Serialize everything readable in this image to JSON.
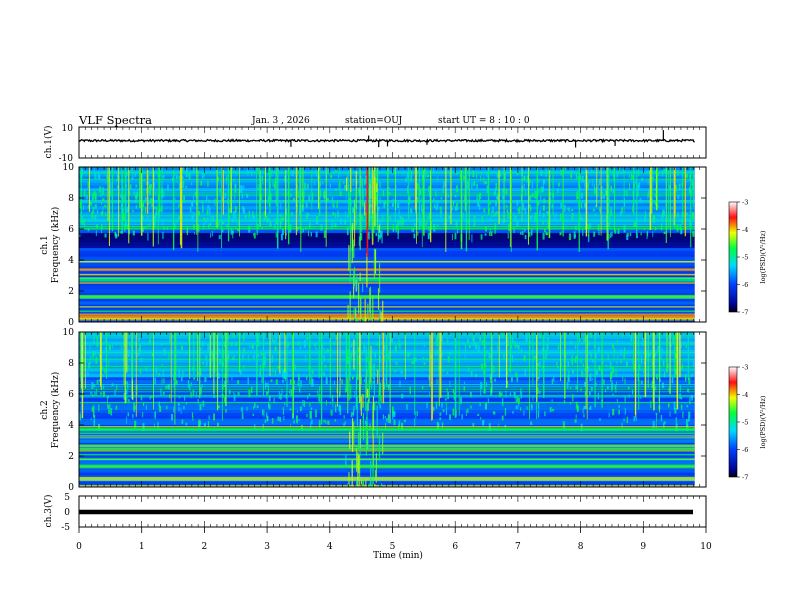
{
  "header": {
    "title": "VLF Spectra",
    "date": "Jan. 3 , 2026",
    "station": "station=OUJ",
    "start": "start UT = 8 : 10 : 0"
  },
  "chart_data": [
    {
      "type": "line",
      "id": "ch1-waveform",
      "ylabel": "ch.1(V)",
      "ylim": [
        -10,
        10
      ],
      "yticks": [
        "10",
        "-10"
      ],
      "xlim": [
        0,
        10
      ],
      "baseline": 1.2,
      "spikes": [
        {
          "t": 4.62,
          "v": 4.5
        },
        {
          "t": 4.78,
          "v": -3.0
        },
        {
          "t": 4.92,
          "v": -2.5
        },
        {
          "t": 3.38,
          "v": -2.8
        },
        {
          "t": 5.55,
          "v": -1.5
        },
        {
          "t": 7.92,
          "v": -3.2
        },
        {
          "t": 8.55,
          "v": -2.2
        },
        {
          "t": 9.32,
          "v": 8.0
        },
        {
          "t": 6.1,
          "v": 2.0
        }
      ]
    },
    {
      "type": "heatmap",
      "id": "ch1-spectrogram",
      "ylabel": "ch.1\nFrequency (kHz)",
      "ylim": [
        0,
        10
      ],
      "yticks": [
        "0",
        "2",
        "4",
        "6",
        "8",
        "10"
      ],
      "xlim": [
        0,
        10
      ],
      "colorbar": {
        "label": "log(PSD)(V²/Hz)",
        "range": [
          -7,
          -3
        ],
        "ticks": [
          "-3",
          "-4",
          "-5",
          "-6",
          "-7"
        ]
      }
    },
    {
      "type": "heatmap",
      "id": "ch2-spectrogram",
      "ylabel": "ch.2\nFrequency (kHz)",
      "ylim": [
        0,
        10
      ],
      "yticks": [
        "0",
        "2",
        "4",
        "6",
        "8",
        "10"
      ],
      "xlim": [
        0,
        10
      ],
      "colorbar": {
        "label": "log(PSD)(V²/Hz)",
        "range": [
          -7,
          -3
        ],
        "ticks": [
          "-3",
          "-4",
          "-5",
          "-6",
          "-7"
        ]
      }
    },
    {
      "type": "line",
      "id": "ch3-waveform",
      "ylabel": "ch.3(V)",
      "ylim": [
        -5,
        5
      ],
      "yticks": [
        "5",
        "0",
        "-5"
      ],
      "xlim": [
        0,
        10
      ],
      "baseline": 0
    }
  ],
  "xaxis": {
    "label": "Time (min)",
    "range": [
      0,
      10
    ],
    "ticks": [
      "0",
      "1",
      "2",
      "3",
      "4",
      "5",
      "6",
      "7",
      "8",
      "9",
      "10"
    ]
  }
}
